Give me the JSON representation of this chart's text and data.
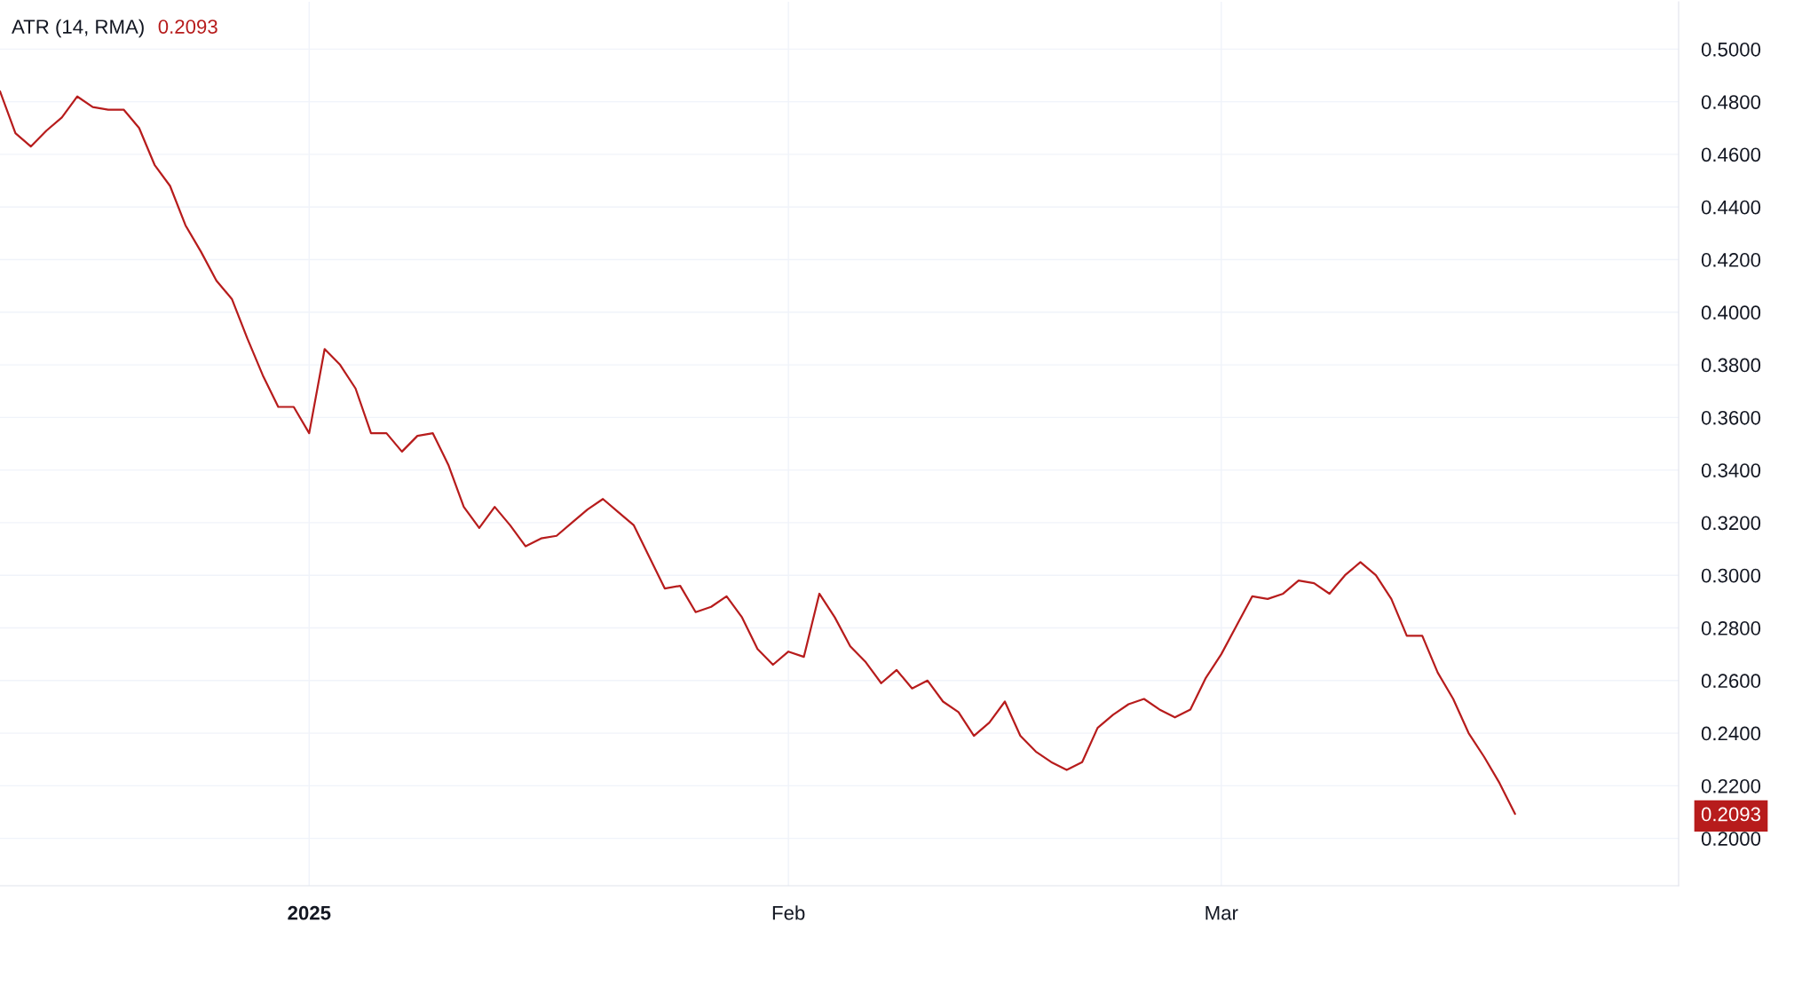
{
  "chart_data": {
    "type": "line",
    "title": "ATR (14, RMA)",
    "annotations": [
      "0.2093"
    ],
    "x": [
      "2024-12-12",
      "2024-12-13",
      "2024-12-14",
      "2024-12-15",
      "2024-12-16",
      "2024-12-17",
      "2024-12-18",
      "2024-12-19",
      "2024-12-20",
      "2024-12-21",
      "2024-12-22",
      "2024-12-23",
      "2024-12-24",
      "2024-12-25",
      "2024-12-26",
      "2024-12-27",
      "2024-12-28",
      "2024-12-29",
      "2024-12-30",
      "2024-12-31",
      "2025-01-01",
      "2025-01-02",
      "2025-01-03",
      "2025-01-04",
      "2025-01-05",
      "2025-01-06",
      "2025-01-07",
      "2025-01-08",
      "2025-01-09",
      "2025-01-10",
      "2025-01-11",
      "2025-01-12",
      "2025-01-13",
      "2025-01-14",
      "2025-01-15",
      "2025-01-16",
      "2025-01-17",
      "2025-01-18",
      "2025-01-19",
      "2025-01-20",
      "2025-01-21",
      "2025-01-22",
      "2025-01-23",
      "2025-01-24",
      "2025-01-25",
      "2025-01-26",
      "2025-01-27",
      "2025-01-28",
      "2025-01-29",
      "2025-01-30",
      "2025-01-31",
      "2025-02-01",
      "2025-02-02",
      "2025-02-03",
      "2025-02-04",
      "2025-02-05",
      "2025-02-06",
      "2025-02-07",
      "2025-02-08",
      "2025-02-09",
      "2025-02-10",
      "2025-02-11",
      "2025-02-12",
      "2025-02-13",
      "2025-02-14",
      "2025-02-15",
      "2025-02-16",
      "2025-02-17",
      "2025-02-18",
      "2025-02-19",
      "2025-02-20",
      "2025-02-21",
      "2025-02-22",
      "2025-02-23",
      "2025-02-24",
      "2025-02-25",
      "2025-02-26",
      "2025-02-27",
      "2025-02-28",
      "2025-03-01",
      "2025-03-02",
      "2025-03-03",
      "2025-03-04",
      "2025-03-05",
      "2025-03-06",
      "2025-03-07",
      "2025-03-08",
      "2025-03-09",
      "2025-03-10",
      "2025-03-11",
      "2025-03-12",
      "2025-03-13",
      "2025-03-14",
      "2025-03-15",
      "2025-03-16",
      "2025-03-17",
      "2025-03-18",
      "2025-03-19",
      "2025-03-20"
    ],
    "series": [
      {
        "color": "#b71c1c",
        "values": [
          0.484,
          0.468,
          0.463,
          0.469,
          0.474,
          0.482,
          0.478,
          0.477,
          0.477,
          0.47,
          0.456,
          0.448,
          0.433,
          0.423,
          0.412,
          0.405,
          0.39,
          0.376,
          0.364,
          0.364,
          0.354,
          0.386,
          0.38,
          0.371,
          0.354,
          0.354,
          0.347,
          0.353,
          0.354,
          0.342,
          0.326,
          0.318,
          0.326,
          0.319,
          0.311,
          0.314,
          0.315,
          0.32,
          0.325,
          0.329,
          0.324,
          0.319,
          0.307,
          0.295,
          0.296,
          0.286,
          0.288,
          0.292,
          0.284,
          0.272,
          0.266,
          0.271,
          0.269,
          0.293,
          0.284,
          0.273,
          0.267,
          0.259,
          0.264,
          0.257,
          0.26,
          0.252,
          0.248,
          0.239,
          0.244,
          0.252,
          0.239,
          0.233,
          0.229,
          0.226,
          0.229,
          0.242,
          0.247,
          0.251,
          0.253,
          0.249,
          0.246,
          0.249,
          0.261,
          0.27,
          0.281,
          0.292,
          0.291,
          0.293,
          0.298,
          0.297,
          0.293,
          0.3,
          0.305,
          0.3,
          0.291,
          0.277,
          0.277,
          0.263,
          0.253,
          0.24,
          0.231,
          0.221,
          0.2093
        ]
      }
    ],
    "xlim": [
      "2024-12-12",
      "2025-03-30T14:00"
    ],
    "xticks": [
      {
        "value": "2025-01-01",
        "label": "2025"
      },
      {
        "value": "2025-02-01",
        "label": "Feb"
      },
      {
        "value": "2025-03-01",
        "label": "Mar"
      }
    ],
    "ylim": [
      0.182,
      0.518
    ],
    "yticks": [
      {
        "value": 0.2,
        "label": "0.2000"
      },
      {
        "value": 0.2093,
        "label": "0.2093"
      },
      {
        "value": 0.22,
        "label": "0.2200"
      },
      {
        "value": 0.24,
        "label": "0.2400"
      },
      {
        "value": 0.26,
        "label": "0.2600"
      },
      {
        "value": 0.28,
        "label": "0.2800"
      },
      {
        "value": 0.3,
        "label": "0.3000"
      },
      {
        "value": 0.32,
        "label": "0.3200"
      },
      {
        "value": 0.34,
        "label": "0.3400"
      },
      {
        "value": 0.36,
        "label": "0.3600"
      },
      {
        "value": 0.38,
        "label": "0.3800"
      },
      {
        "value": 0.4,
        "label": "0.4000"
      },
      {
        "value": 0.42,
        "label": "0.4200"
      },
      {
        "value": 0.44,
        "label": "0.4400"
      },
      {
        "value": 0.46,
        "label": "0.4600"
      },
      {
        "value": 0.48,
        "label": "0.4800"
      },
      {
        "value": 0.5,
        "label": "0.5000"
      }
    ],
    "grid": true
  }
}
